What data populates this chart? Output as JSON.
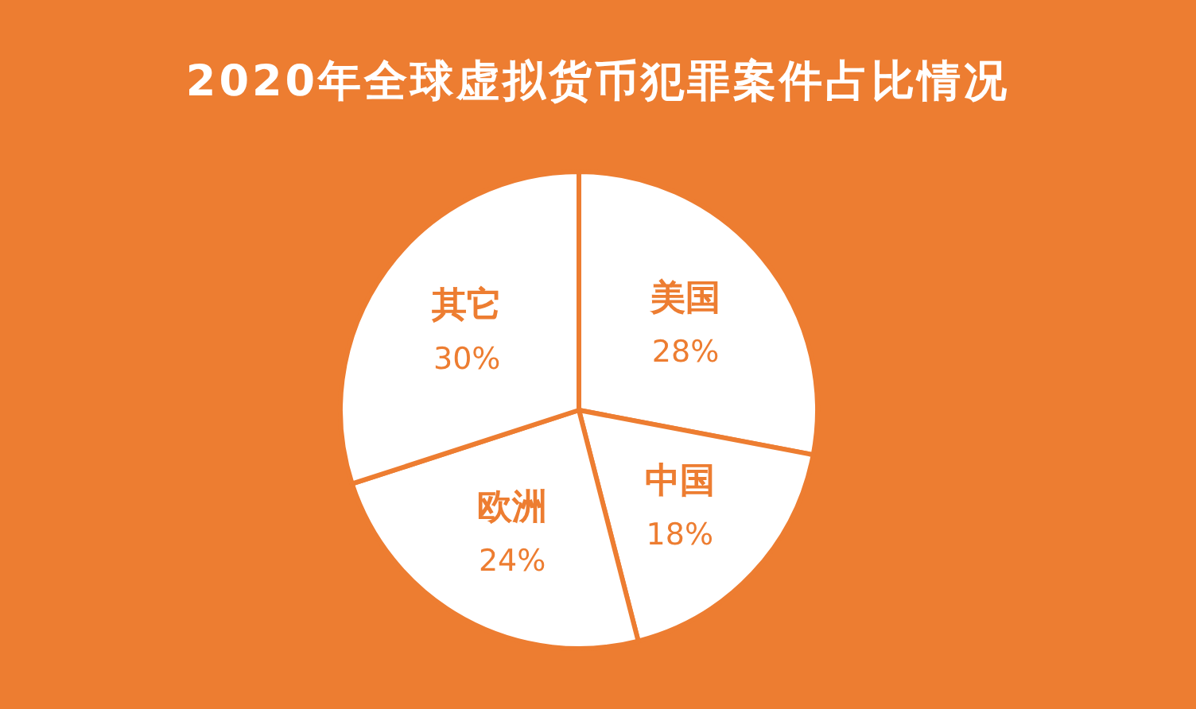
{
  "chart_data": {
    "type": "pie",
    "title": "2020年全球虚拟货币犯罪案件占比情况",
    "categories": [
      "美国",
      "中国",
      "欧洲",
      "其它"
    ],
    "values": [
      28,
      18,
      24,
      30
    ],
    "colors": [
      "#ffffff",
      "#ffffff",
      "#ffffff",
      "#ffffff"
    ],
    "value_labels": [
      "28%",
      "18%",
      "24%",
      "30%"
    ]
  }
}
